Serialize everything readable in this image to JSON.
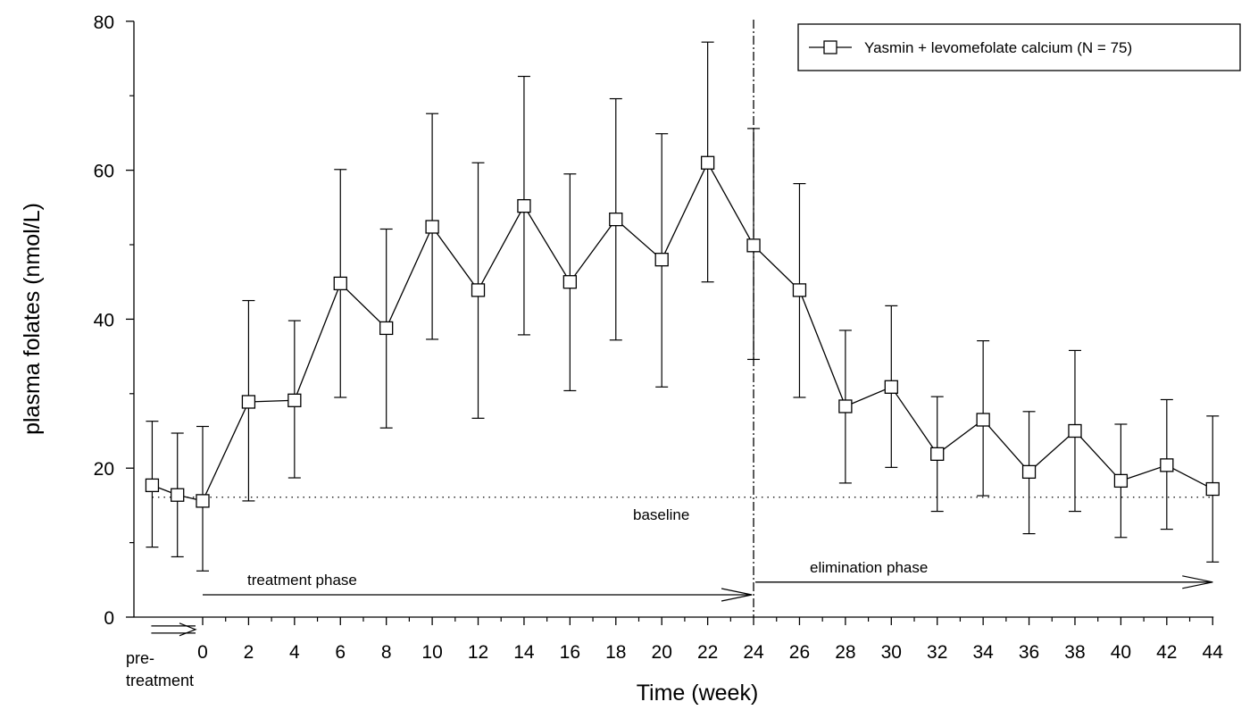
{
  "chart_data": {
    "type": "line",
    "xlabel": "Time (week)",
    "ylabel": "plasma folates (nmol/L)",
    "ylim": [
      0,
      80
    ],
    "yticks": [
      0,
      20,
      40,
      60,
      80
    ],
    "xticks": [
      0,
      2,
      4,
      6,
      8,
      10,
      12,
      14,
      16,
      18,
      20,
      22,
      24,
      26,
      28,
      30,
      32,
      34,
      36,
      38,
      40,
      42,
      44
    ],
    "xtick_labels": [
      "0",
      "2",
      "4",
      "6",
      "8",
      "10",
      "12",
      "14",
      "16",
      "18",
      "20",
      "22",
      "24",
      "26",
      "28",
      "30",
      "32",
      "34",
      "36",
      "38",
      "40",
      "42",
      "44"
    ],
    "pretreatment_label_line1": "pre-",
    "pretreatment_label_line2": "treatment",
    "legend": {
      "label": "Yasmin + levomefolate calcium (N = 75)",
      "position": "top-right"
    },
    "series": [
      {
        "name": "Yasmin + levomefolate calcium (N = 75)",
        "x": [
          -2.2,
          -1.1,
          0,
          2,
          4,
          6,
          8,
          10,
          12,
          14,
          16,
          18,
          20,
          22,
          24,
          26,
          28,
          30,
          32,
          34,
          36,
          38,
          40,
          42,
          44
        ],
        "mean": [
          17.7,
          16.4,
          15.6,
          28.9,
          29.1,
          44.8,
          38.8,
          52.4,
          43.9,
          55.2,
          45.0,
          53.4,
          48.0,
          61.0,
          49.9,
          43.9,
          28.3,
          30.9,
          21.9,
          26.5,
          19.5,
          25.0,
          18.3,
          20.4,
          17.2
        ],
        "upper": [
          26.3,
          24.7,
          25.6,
          42.5,
          39.8,
          60.1,
          52.1,
          67.6,
          61.0,
          72.6,
          59.5,
          69.6,
          64.9,
          77.2,
          65.6,
          58.2,
          38.5,
          41.8,
          29.6,
          37.1,
          27.6,
          35.8,
          25.9,
          29.2,
          27.0
        ],
        "lower": [
          9.4,
          8.1,
          6.2,
          15.6,
          18.7,
          29.5,
          25.4,
          37.3,
          26.7,
          37.9,
          30.4,
          37.2,
          30.9,
          45.0,
          34.6,
          29.5,
          18.0,
          20.1,
          14.2,
          16.3,
          11.2,
          14.2,
          10.7,
          11.8,
          7.4
        ]
      }
    ],
    "baseline": {
      "value": 16.1,
      "label": "baseline"
    },
    "phase_divider_x": 24,
    "phases": [
      {
        "label": "treatment phase",
        "x_start": 0,
        "x_end": 24,
        "y": 3.0
      },
      {
        "label": "elimination phase",
        "x_start": 24,
        "x_end": 44,
        "y": 4.7
      }
    ],
    "pretreatment_arrow": {
      "x_start": -2.2,
      "x_end": 0,
      "y": -1.9
    }
  }
}
